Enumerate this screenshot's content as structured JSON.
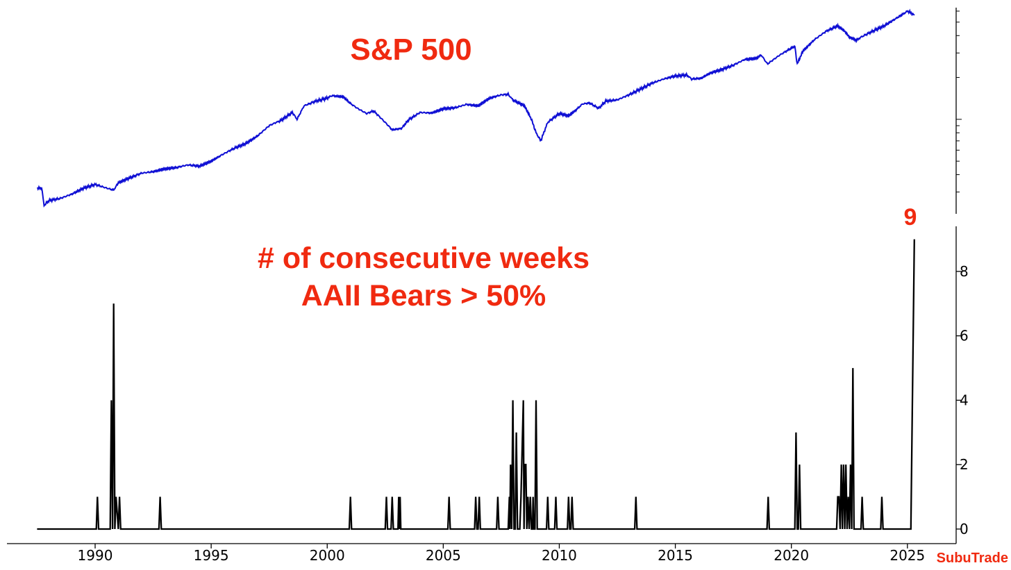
{
  "chart_data": [
    {
      "type": "line",
      "title": "S&P 500",
      "y_scale": "log",
      "y_tick_labels": "none",
      "grid": false,
      "color": "#0f0fd4",
      "series": [
        {
          "x": [
            1987.5,
            1987.7,
            1987.8,
            1988.0,
            1988.5,
            1989.0,
            1989.5,
            1990.0,
            1990.5,
            1990.8,
            1991.0,
            1991.5,
            1992.0,
            1992.5,
            1993.0,
            1993.5,
            1994.0,
            1994.5,
            1995.0,
            1995.5,
            1996.0,
            1996.5,
            1997.0,
            1997.5,
            1997.8,
            1998.0,
            1998.5,
            1998.7,
            1999.0,
            1999.5,
            2000.0,
            2000.2,
            2000.7,
            2001.0,
            2001.3,
            2001.7,
            2002.0,
            2002.5,
            2002.8,
            2003.2,
            2003.5,
            2004.0,
            2004.5,
            2005.0,
            2005.5,
            2006.0,
            2006.5,
            2007.0,
            2007.5,
            2007.8,
            2008.0,
            2008.5,
            2008.8,
            2009.0,
            2009.2,
            2009.5,
            2010.0,
            2010.4,
            2010.7,
            2011.0,
            2011.3,
            2011.7,
            2012.0,
            2012.5,
            2013.0,
            2013.5,
            2014.0,
            2014.5,
            2015.0,
            2015.5,
            2015.7,
            2016.1,
            2016.5,
            2017.0,
            2017.5,
            2018.0,
            2018.1,
            2018.5,
            2018.7,
            2018.97,
            2019.5,
            2020.0,
            2020.15,
            2020.25,
            2020.5,
            2021.0,
            2021.5,
            2022.0,
            2022.3,
            2022.5,
            2022.8,
            2023.0,
            2023.5,
            2024.0,
            2024.5,
            2024.8,
            2025.0,
            2025.1,
            2025.3
          ],
          "y": [
            320,
            320,
            240,
            260,
            270,
            290,
            320,
            340,
            320,
            310,
            350,
            380,
            410,
            420,
            440,
            450,
            470,
            460,
            500,
            560,
            620,
            670,
            760,
            900,
            950,
            980,
            1120,
            1000,
            1250,
            1350,
            1420,
            1480,
            1450,
            1300,
            1200,
            1100,
            1150,
            950,
            840,
            860,
            990,
            1120,
            1110,
            1190,
            1210,
            1280,
            1250,
            1420,
            1500,
            1510,
            1380,
            1250,
            1000,
            800,
            700,
            950,
            1100,
            1060,
            1160,
            1290,
            1310,
            1200,
            1350,
            1380,
            1500,
            1650,
            1820,
            1950,
            2050,
            2080,
            1950,
            1970,
            2150,
            2280,
            2450,
            2700,
            2700,
            2750,
            2900,
            2500,
            2900,
            3250,
            3350,
            2500,
            3100,
            3750,
            4300,
            4700,
            4300,
            3900,
            3700,
            3900,
            4300,
            4700,
            5300,
            5700,
            6000,
            5900,
            5600
          ]
        }
      ]
    },
    {
      "type": "line",
      "title": "# of consecutive weeks AAII Bears > 50%",
      "y_ticks": [
        0,
        2,
        4,
        6,
        8
      ],
      "ylim": [
        0,
        9.4
      ],
      "annotation": "9",
      "x_ticks": [
        1990,
        1995,
        2000,
        2005,
        2010,
        2015,
        2020,
        2025
      ],
      "xlim": [
        1986.2,
        2027.1
      ],
      "grid": false,
      "color": "#000000",
      "series": [
        {
          "x": [
            1987.5,
            1990.05,
            1990.1,
            1990.15,
            1990.65,
            1990.7,
            1990.75,
            1990.8,
            1990.85,
            1990.9,
            1991.0,
            1991.05,
            1991.1,
            1992.75,
            1992.8,
            1992.85,
            2000.95,
            2001.0,
            2001.05,
            2002.5,
            2002.55,
            2002.6,
            2002.75,
            2002.8,
            2002.85,
            2003.05,
            2003.08,
            2003.11,
            2003.14,
            2003.17,
            2005.2,
            2005.25,
            2005.3,
            2006.35,
            2006.4,
            2006.45,
            2006.5,
            2006.55,
            2006.6,
            2007.3,
            2007.35,
            2007.4,
            2007.8,
            2007.85,
            2007.87,
            2007.9,
            2007.95,
            2008.0,
            2008.05,
            2008.1,
            2008.15,
            2008.2,
            2008.25,
            2008.3,
            2008.35,
            2008.45,
            2008.48,
            2008.51,
            2008.56,
            2008.6,
            2008.65,
            2008.7,
            2008.75,
            2008.8,
            2008.85,
            2008.87,
            2008.9,
            2008.95,
            2009.0,
            2009.05,
            2009.1,
            2009.15,
            2009.2,
            2009.25,
            2009.45,
            2009.5,
            2009.55,
            2009.8,
            2009.85,
            2009.9,
            2010.35,
            2010.4,
            2010.45,
            2010.5,
            2010.55,
            2010.6,
            2013.25,
            2013.3,
            2013.35,
            2018.95,
            2019.0,
            2019.05,
            2020.15,
            2020.2,
            2020.25,
            2020.3,
            2020.35,
            2020.4,
            2020.45,
            2021.95,
            2022.0,
            2022.05,
            2022.1,
            2022.15,
            2022.2,
            2022.25,
            2022.3,
            2022.35,
            2022.4,
            2022.45,
            2022.5,
            2022.55,
            2022.6,
            2022.65,
            2022.7,
            2022.75,
            2022.8,
            2022.85,
            2022.9,
            2023.0,
            2023.05,
            2023.1,
            2023.85,
            2023.9,
            2023.95,
            2025.15,
            2025.3
          ],
          "y": [
            0,
            0,
            1,
            0,
            0,
            4,
            0,
            7,
            0,
            1,
            0,
            1,
            0,
            0,
            1,
            0,
            0,
            1,
            0,
            0,
            1,
            0,
            0,
            1,
            0,
            0,
            1,
            0,
            1,
            0,
            0,
            1,
            0,
            0,
            1,
            0,
            0,
            1,
            0,
            0,
            1,
            0,
            0,
            1,
            0,
            2,
            0,
            4,
            0,
            0,
            3,
            0,
            0,
            0,
            1,
            4,
            0,
            2,
            2,
            0,
            1,
            0,
            1,
            0,
            0,
            1,
            0,
            0,
            4,
            0,
            0,
            0,
            0,
            0,
            0,
            1,
            0,
            0,
            1,
            0,
            0,
            1,
            0,
            0,
            1,
            0,
            0,
            1,
            0,
            0,
            1,
            0,
            0,
            3,
            0,
            0,
            2,
            0,
            0,
            0,
            1,
            1,
            0,
            2,
            0,
            2,
            0,
            2,
            0,
            1,
            0,
            2,
            0,
            5,
            0,
            0,
            0,
            0,
            0,
            0,
            1,
            0,
            0,
            1,
            0,
            0,
            9
          ]
        }
      ]
    }
  ],
  "brand": "SubuTrade"
}
